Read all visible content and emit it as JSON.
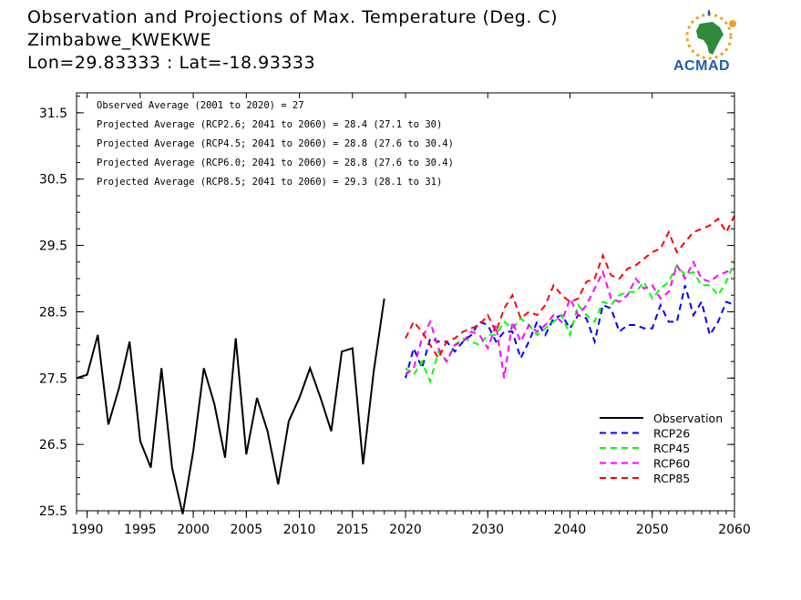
{
  "header": {
    "title": "Observation and Projections of Max. Temperature (Deg. C)",
    "location": "Zimbabwe_KWEKWE",
    "coords": "Lon=29.83333 : Lat=-18.93333"
  },
  "logo": {
    "text": "ACMAD"
  },
  "colors": {
    "observation": "#000000",
    "rcp26": "#0000ff",
    "rcp45": "#00ff00",
    "rcp60": "#ff00ff",
    "rcp85": "#ff0000"
  },
  "chart_data": {
    "type": "line",
    "xlim": [
      1989,
      2060
    ],
    "ylim": [
      25.5,
      31.8
    ],
    "grid": false,
    "legend_position": "bottom-right",
    "x_ticks": [
      "1990",
      "1995",
      "2000",
      "2005",
      "2010",
      "2015",
      "2020",
      "2030",
      "2040",
      "2050",
      "2060"
    ],
    "y_ticks": [
      "25.5",
      "26.5",
      "27.5",
      "28.5",
      "29.5",
      "30.5",
      "31.5"
    ],
    "annotations": [
      "Observed Average (2001 to 2020) = 27",
      "Projected Average (RCP2.6; 2041 to 2060) = 28.4 (27.1 to 30)",
      "Projected Average (RCP4.5; 2041 to 2060) = 28.8 (27.6 to 30.4)",
      "Projected Average (RCP6.0; 2041 to 2060) = 28.8 (27.6 to 30.4)",
      "Projected Average (RCP8.5; 2041 to 2060) = 29.3 (28.1 to 31)"
    ],
    "series": [
      {
        "name": "Observation",
        "key": "observation",
        "dashed": false,
        "start_year": 1989,
        "values": [
          27.5,
          27.55,
          28.15,
          26.8,
          27.35,
          28.05,
          26.55,
          26.15,
          27.65,
          26.15,
          25.45,
          26.4,
          27.65,
          27.1,
          26.3,
          28.1,
          26.35,
          27.2,
          26.7,
          25.9,
          26.85,
          27.2,
          27.65,
          27.2,
          26.7,
          27.9,
          27.95,
          26.2,
          27.6,
          28.7
        ]
      },
      {
        "name": "RCP26",
        "key": "rcp26",
        "dashed": true,
        "start_year": 2020,
        "values": [
          27.5,
          27.95,
          27.65,
          28.1,
          28.05,
          28.05,
          27.9,
          28.05,
          28.15,
          28.35,
          28.3,
          28.05,
          28.2,
          28.2,
          27.8,
          28.05,
          28.35,
          28.15,
          28.4,
          28.45,
          28.25,
          28.45,
          28.4,
          28.05,
          28.6,
          28.55,
          28.2,
          28.3,
          28.3,
          28.25,
          28.25,
          28.6,
          28.35,
          28.35,
          28.9,
          28.45,
          28.65,
          28.15,
          28.35,
          28.65,
          28.6
        ]
      },
      {
        "name": "RCP45",
        "key": "rcp45",
        "dashed": true,
        "start_year": 2020,
        "values": [
          27.65,
          27.55,
          27.75,
          27.45,
          27.9,
          27.75,
          28.0,
          28.1,
          28.05,
          28.0,
          28.15,
          28.15,
          28.35,
          28.25,
          28.4,
          28.3,
          28.15,
          28.25,
          28.35,
          28.45,
          28.15,
          28.6,
          28.45,
          28.35,
          28.65,
          28.6,
          28.75,
          28.8,
          28.8,
          28.95,
          28.7,
          28.85,
          28.95,
          29.2,
          29.05,
          29.1,
          28.9,
          28.9,
          28.75,
          28.95,
          29.25
        ]
      },
      {
        "name": "RCP60",
        "key": "rcp60",
        "dashed": true,
        "start_year": 2020,
        "values": [
          27.55,
          27.65,
          28.1,
          28.35,
          27.95,
          27.75,
          28.0,
          28.05,
          28.2,
          28.15,
          27.95,
          28.3,
          27.5,
          28.35,
          28.05,
          28.3,
          28.2,
          28.3,
          28.45,
          28.35,
          28.7,
          28.45,
          28.6,
          28.85,
          29.1,
          28.7,
          28.65,
          28.75,
          29.0,
          28.85,
          28.9,
          28.7,
          28.8,
          29.2,
          29.0,
          29.25,
          29.0,
          28.95,
          29.05,
          29.1,
          29.15
        ]
      },
      {
        "name": "RCP85",
        "key": "rcp85",
        "dashed": true,
        "start_year": 2020,
        "values": [
          28.1,
          28.35,
          28.2,
          28.0,
          27.8,
          28.05,
          28.1,
          28.2,
          28.25,
          28.3,
          28.45,
          28.2,
          28.55,
          28.75,
          28.4,
          28.5,
          28.45,
          28.6,
          28.9,
          28.75,
          28.65,
          28.7,
          28.95,
          29.0,
          29.35,
          29.05,
          29.0,
          29.15,
          29.2,
          29.3,
          29.4,
          29.45,
          29.7,
          29.4,
          29.55,
          29.7,
          29.75,
          29.8,
          29.9,
          29.7,
          29.95
        ]
      }
    ]
  }
}
